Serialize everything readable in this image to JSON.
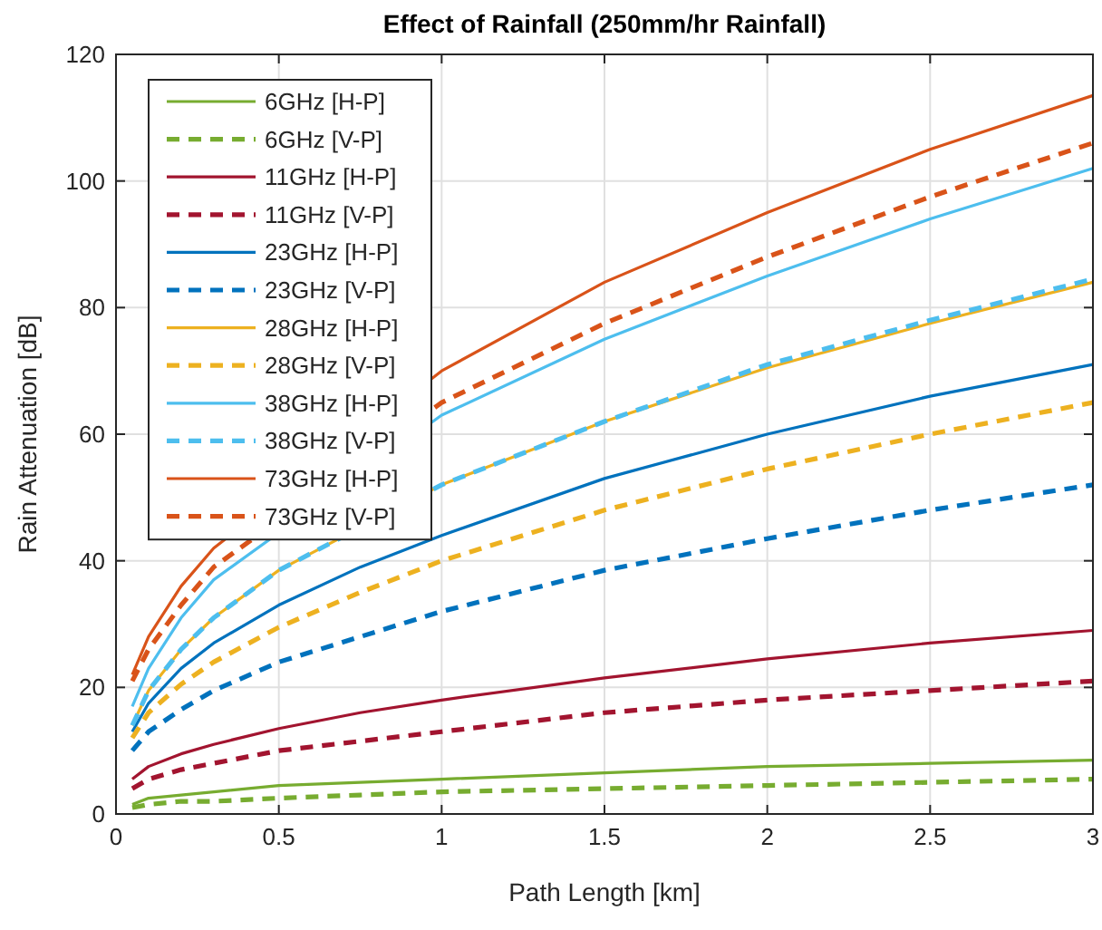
{
  "chart_data": {
    "type": "line",
    "title": "Effect of Rainfall (250mm/hr Rainfall)",
    "xlabel": "Path Length [km]",
    "ylabel": "Rain Attenuation [dB]",
    "x": [
      0.05,
      0.1,
      0.2,
      0.3,
      0.5,
      0.75,
      1,
      1.5,
      2,
      2.5,
      3
    ],
    "xlim": [
      0,
      3
    ],
    "xticks": [
      0,
      0.5,
      1,
      1.5,
      2,
      2.5,
      3
    ],
    "ylim": [
      0,
      120
    ],
    "yticks": [
      0,
      20,
      40,
      60,
      80,
      100,
      120
    ],
    "grid": true,
    "legend": "top left",
    "marker": "none",
    "series": [
      {
        "name": "6GHz [H-P]",
        "color": "#77ac30",
        "line_style": "solid",
        "values": [
          1.5,
          2.5,
          3,
          3.5,
          4.5,
          5,
          5.5,
          6.5,
          7.5,
          8,
          8.5
        ]
      },
      {
        "name": "6GHz [V-P]",
        "color": "#77ac30",
        "line_style": "dashed",
        "values": [
          1,
          1.5,
          2,
          2,
          2.5,
          3,
          3.5,
          4,
          4.5,
          5,
          5.5
        ]
      },
      {
        "name": "11GHz [H-P]",
        "color": "#a2142f",
        "line_style": "solid",
        "values": [
          5.5,
          7.5,
          9.5,
          11,
          13.5,
          16,
          18,
          21.5,
          24.5,
          27,
          29
        ]
      },
      {
        "name": "11GHz [V-P]",
        "color": "#a2142f",
        "line_style": "dashed",
        "values": [
          4,
          5.5,
          7,
          8,
          10,
          11.5,
          13,
          16,
          18,
          19.5,
          21
        ]
      },
      {
        "name": "23GHz [H-P]",
        "color": "#0072bd",
        "line_style": "solid",
        "values": [
          13,
          17.5,
          23,
          27,
          33,
          39,
          44,
          53,
          60,
          66,
          71
        ]
      },
      {
        "name": "23GHz [V-P]",
        "color": "#0072bd",
        "line_style": "dashed",
        "values": [
          10,
          13,
          16.5,
          19.5,
          24,
          28,
          32,
          38.5,
          43.5,
          48,
          52
        ]
      },
      {
        "name": "28GHz [H-P]",
        "color": "#edb120",
        "line_style": "solid",
        "x": [
          0.05,
          0.1,
          0.2,
          0.3,
          0.5,
          1,
          1.5,
          2,
          2.5,
          3
        ],
        "values": [
          14,
          19.5,
          26,
          31,
          38.5,
          52,
          62,
          70.5,
          77.5,
          84
        ]
      },
      {
        "name": "28GHz [V-P]",
        "color": "#edb120",
        "line_style": "dashed",
        "values": [
          12,
          16,
          20.5,
          24,
          29.5,
          35,
          40,
          48,
          54.5,
          60,
          65
        ]
      },
      {
        "name": "38GHz [H-P]",
        "color": "#4dbeee",
        "line_style": "solid",
        "x": [
          0.05,
          0.1,
          0.2,
          0.3,
          1,
          1.5,
          2,
          2.5,
          3
        ],
        "values": [
          17,
          23,
          31,
          37,
          63,
          75,
          85,
          94,
          102
        ]
      },
      {
        "name": "38GHz [V-P]",
        "color": "#4dbeee",
        "line_style": "dashed",
        "x": [
          0.05,
          0.1,
          0.2,
          0.3,
          0.5,
          1,
          1.5,
          2,
          2.5,
          3
        ],
        "values": [
          14,
          19.5,
          26,
          31,
          38.5,
          52,
          62,
          71,
          78,
          84.5
        ]
      },
      {
        "name": "73GHz [H-P]",
        "color": "#d95319",
        "line_style": "solid",
        "x": [
          0.05,
          0.1,
          0.2,
          0.3,
          1,
          1.5,
          2,
          2.5,
          3
        ],
        "values": [
          22,
          28,
          36,
          42,
          70,
          84,
          95,
          105,
          113.5
        ]
      },
      {
        "name": "73GHz [V-P]",
        "color": "#d95319",
        "line_style": "dashed",
        "x": [
          0.05,
          0.1,
          0.2,
          0.3,
          1,
          1.5,
          2,
          2.5,
          3
        ],
        "values": [
          21,
          26,
          33,
          39,
          65,
          77.5,
          88,
          97.5,
          106
        ]
      }
    ]
  }
}
